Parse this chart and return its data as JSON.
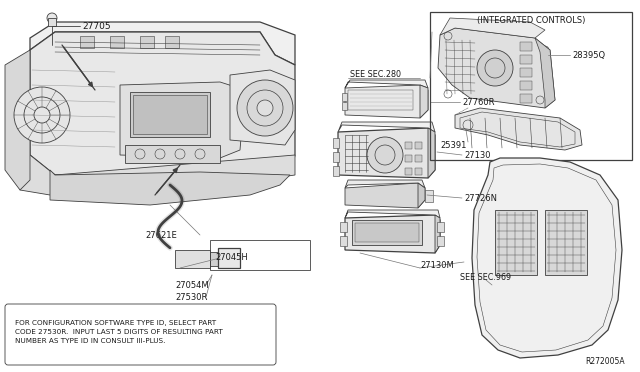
{
  "bg_color": "#ffffff",
  "line_color": "#404040",
  "text_color": "#1a1a1a",
  "diagram_ref": "R272005A",
  "note_text": "FOR CONFIGURATION SOFTWARE TYPE ID, SELECT PART\nCODE 27530R.  INPUT LAST 5 DIGITS OF RESULTING PART\nNUMBER AS TYPE ID IN CONSULT III-PLUS.",
  "integrated_title": "(INTEGRATED CONTROLS)",
  "font_size_label": 5.8,
  "font_size_note": 5.2,
  "font_size_ref": 5.5
}
